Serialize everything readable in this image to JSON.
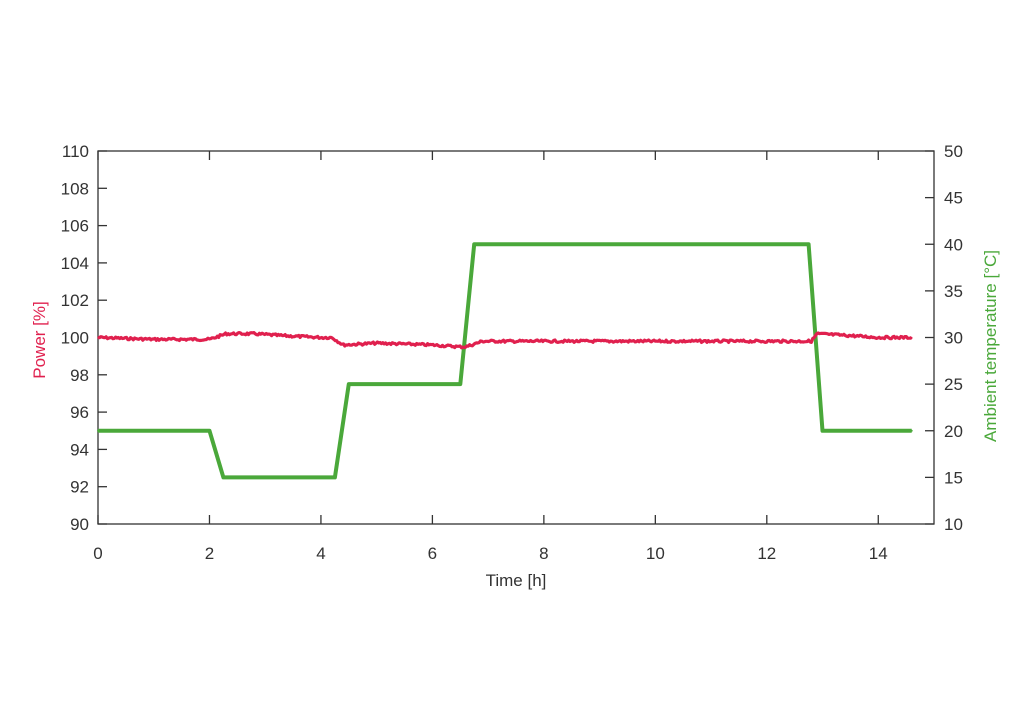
{
  "chart_data": {
    "type": "line",
    "xlabel": "Time [h]",
    "ylabel_left": "Power [%]",
    "ylabel_right": "Ambient temperature [°C]",
    "xlim": [
      0,
      15
    ],
    "ylim_left": [
      90,
      110
    ],
    "ylim_right": [
      10,
      50
    ],
    "x_ticks": [
      0,
      2,
      4,
      6,
      8,
      10,
      12,
      14
    ],
    "y_left_ticks": [
      90,
      92,
      94,
      96,
      98,
      100,
      102,
      104,
      106,
      108,
      110
    ],
    "y_right_ticks": [
      10,
      15,
      20,
      25,
      30,
      35,
      40,
      45,
      50
    ],
    "grid": false,
    "colors": {
      "power": "#e0204e",
      "temperature": "#4aa83a",
      "axis": "#333333"
    },
    "series": [
      {
        "axis": "left",
        "x": [
          0,
          1.0,
          2.0,
          2.3,
          2.8,
          3.3,
          4.0,
          4.2,
          4.4,
          5.0,
          6.0,
          6.5,
          6.6,
          6.9,
          7.5,
          8.5,
          9.5,
          10.5,
          11.5,
          12.5,
          12.8,
          12.9,
          13.5,
          14.0,
          14.6
        ],
        "y": [
          100.0,
          99.9,
          99.9,
          100.2,
          100.2,
          100.1,
          100.0,
          100.0,
          99.6,
          99.7,
          99.6,
          99.5,
          99.5,
          99.8,
          99.8,
          99.8,
          99.8,
          99.8,
          99.8,
          99.8,
          99.8,
          100.2,
          100.1,
          100.0,
          100.0
        ]
      },
      {
        "axis": "right",
        "x": [
          0,
          2.0,
          2.25,
          4.25,
          4.5,
          6.5,
          6.75,
          12.75,
          13.0,
          14.6
        ],
        "y": [
          20,
          20,
          15,
          15,
          25,
          25,
          40,
          40,
          20,
          20
        ]
      }
    ]
  }
}
